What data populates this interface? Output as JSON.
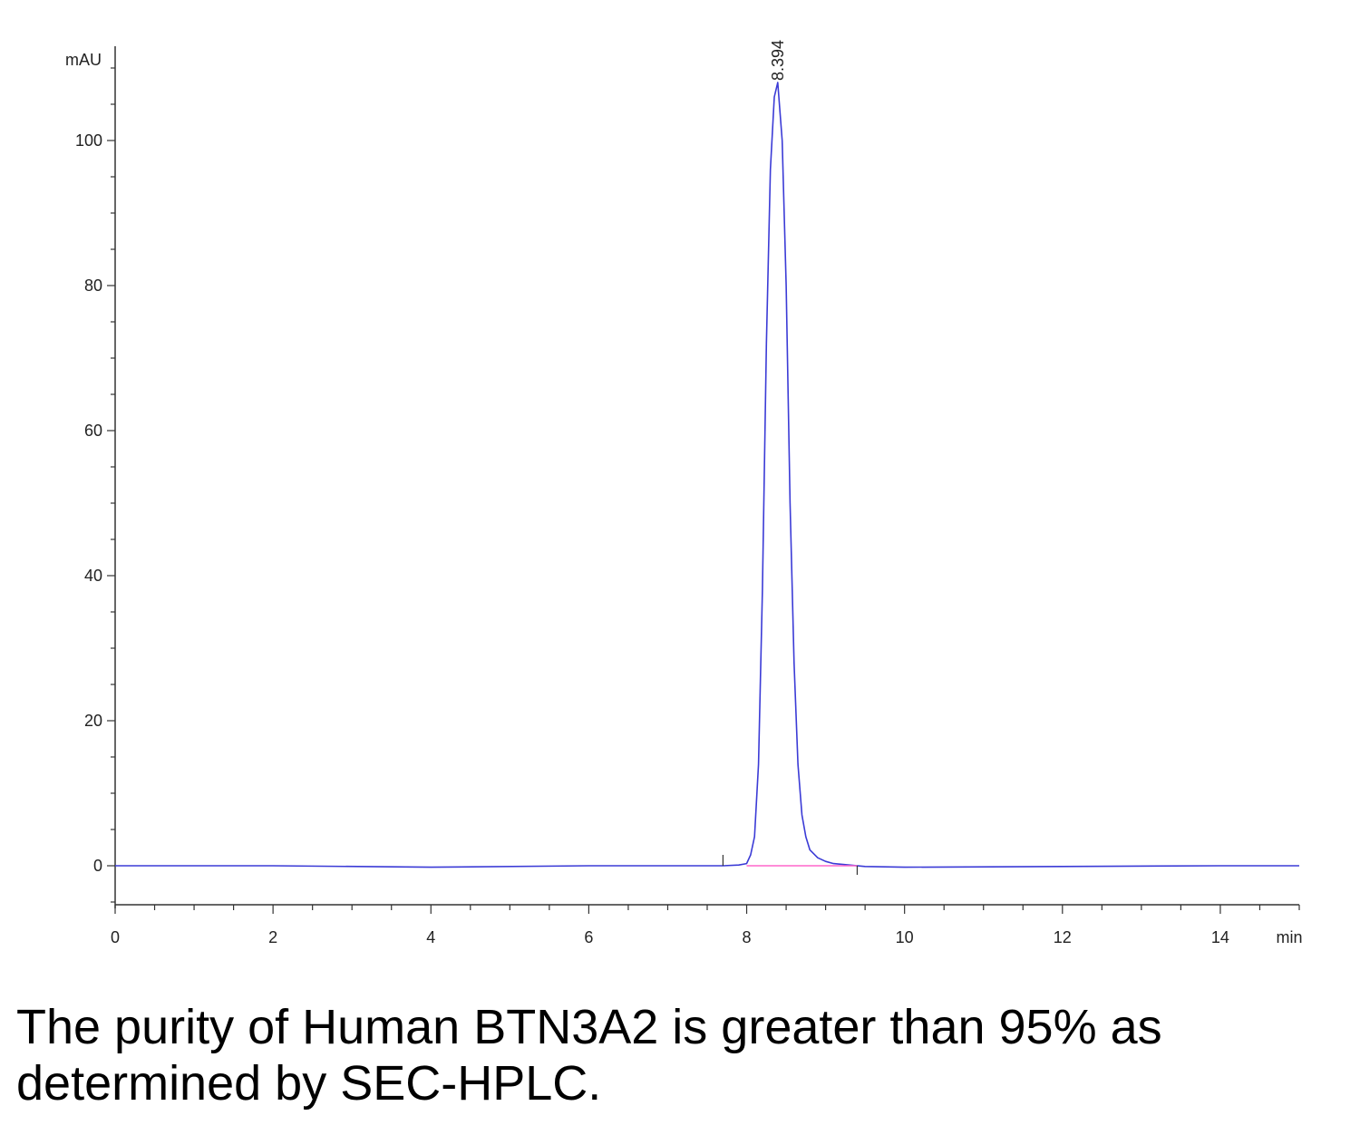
{
  "chart_data": {
    "type": "line",
    "x_unit": "min",
    "y_unit": "mAU",
    "xlim": [
      0,
      15
    ],
    "ylim": [
      -5,
      113
    ],
    "x_ticks": [
      0,
      2,
      4,
      6,
      8,
      10,
      12,
      14
    ],
    "y_ticks": [
      0,
      20,
      40,
      60,
      80,
      100
    ],
    "grid": false,
    "series": [
      {
        "color": "#3b3bd6",
        "x": [
          0,
          2,
          4,
          6,
          7.4,
          7.7,
          7.9,
          8.0,
          8.05,
          8.1,
          8.15,
          8.2,
          8.25,
          8.3,
          8.35,
          8.394,
          8.45,
          8.5,
          8.55,
          8.6,
          8.65,
          8.7,
          8.75,
          8.8,
          8.9,
          9.0,
          9.1,
          9.3,
          9.5,
          10,
          12,
          14,
          15
        ],
        "y": [
          0,
          0,
          -0.2,
          0,
          0,
          0,
          0.1,
          0.3,
          1.5,
          4,
          14,
          38,
          72,
          96,
          106,
          108,
          100,
          80,
          50,
          28,
          14,
          7,
          4,
          2.2,
          1.1,
          0.6,
          0.3,
          0.1,
          -0.1,
          -0.2,
          -0.1,
          0,
          0
        ]
      },
      {
        "color": "#ff66cc",
        "x": [
          8.0,
          9.4
        ],
        "y": [
          0,
          0
        ]
      }
    ],
    "peaks": [
      {
        "rt": 8.394,
        "label": "8.394"
      }
    ]
  },
  "caption": "The purity of Human BTN3A2 is greater than 95% as determined by SEC-HPLC."
}
